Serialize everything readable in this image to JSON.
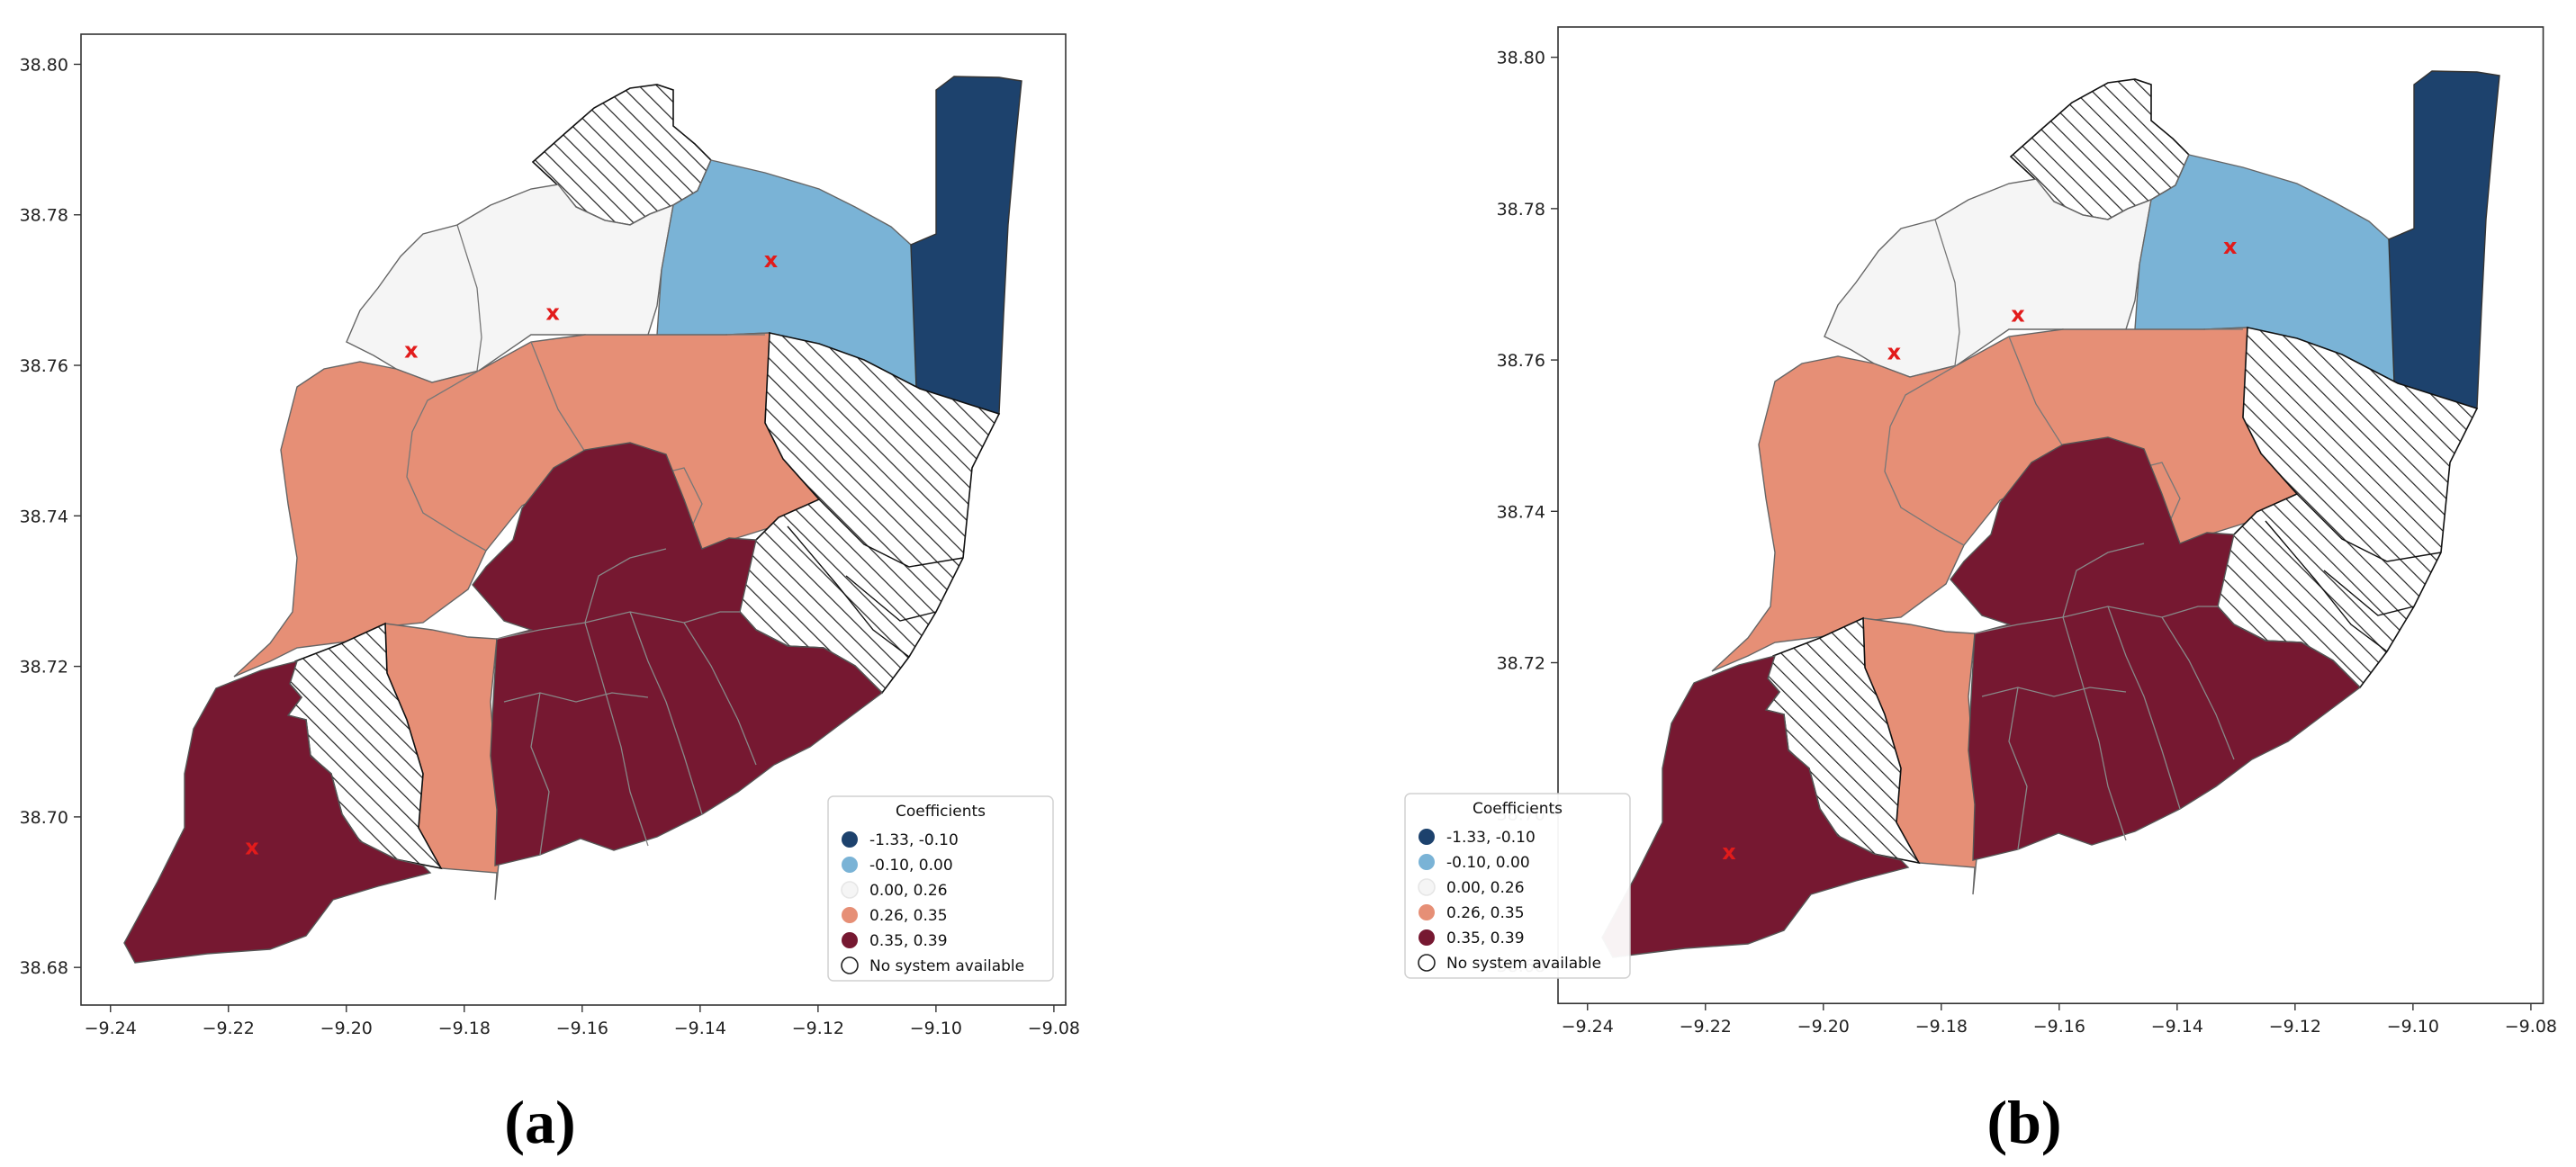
{
  "colors": {
    "c1": "#1d426d",
    "c2": "#7ab3d6",
    "c3": "#f5f5f5",
    "c4": "#e68f76",
    "c5": "#761831",
    "marker": "#e21b1b"
  },
  "legend": {
    "title": "Coefficients",
    "items": [
      {
        "label": "-1.33, -0.10",
        "color_key": "c1"
      },
      {
        "label": "-0.10,  0.00",
        "color_key": "c2"
      },
      {
        "label": " 0.00,  0.26",
        "color_key": "c3"
      },
      {
        "label": " 0.26,  0.35",
        "color_key": "c4"
      },
      {
        "label": " 0.35,  0.39",
        "color_key": "c5"
      },
      {
        "label": "No system available",
        "color_key": "none"
      }
    ]
  },
  "chart_data": [
    {
      "type": "choropleth-map",
      "panel_label": "(a)",
      "xlim": [
        -9.245,
        -9.078
      ],
      "ylim": [
        38.675,
        38.804
      ],
      "x_ticks": [
        "−9.24",
        "−9.22",
        "−9.20",
        "−9.18",
        "−9.16",
        "−9.14",
        "−9.12",
        "−9.10",
        "−9.08"
      ],
      "y_ticks": [
        "38.68",
        "38.70",
        "38.72",
        "38.74",
        "38.76",
        "38.78",
        "38.80"
      ],
      "legend_position": "lower right",
      "markers": [
        {
          "symbol": "x",
          "lon": -9.216,
          "lat": 38.696
        },
        {
          "symbol": "x",
          "lon": -9.189,
          "lat": 38.762
        },
        {
          "symbol": "x",
          "lon": -9.165,
          "lat": 38.767
        },
        {
          "symbol": "x",
          "lon": -9.128,
          "lat": 38.774
        }
      ]
    },
    {
      "type": "choropleth-map",
      "panel_label": "(b)",
      "xlim": [
        -9.245,
        -9.078
      ],
      "ylim": [
        38.675,
        38.804
      ],
      "x_ticks": [
        "−9.24",
        "−9.22",
        "−9.20",
        "−9.18",
        "−9.16",
        "−9.14",
        "−9.12",
        "−9.10",
        "−9.08"
      ],
      "y_ticks": [
        "38.68",
        "38.70",
        "38.72",
        "38.74",
        "38.76",
        "38.78",
        "38.80"
      ],
      "legend_position": "lower right",
      "markers": [
        {
          "symbol": "x",
          "lon": -9.216,
          "lat": 38.695
        },
        {
          "symbol": "x",
          "lon": -9.188,
          "lat": 38.761
        },
        {
          "symbol": "x",
          "lon": -9.167,
          "lat": 38.766
        },
        {
          "symbol": "x",
          "lon": -9.131,
          "lat": 38.775
        }
      ]
    }
  ]
}
